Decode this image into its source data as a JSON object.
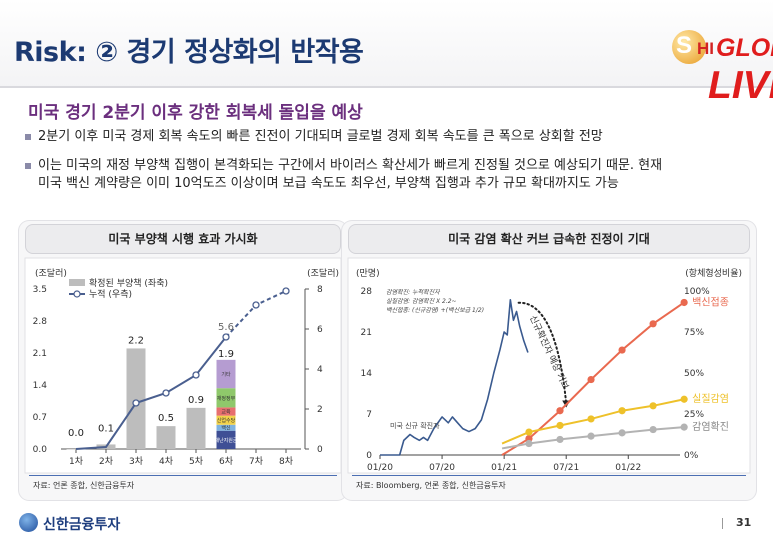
{
  "slide": {
    "title": "Risk: ② 경기 정상화의 반작용",
    "headline": "미국 경기 2분기 이후 강한 회복세 돌입을 예상",
    "bullets": [
      "2분기 이후 미국 경제 회복 속도의 빠른 진전이 기대되며 글로벌 경제 회복 속도를 큰 폭으로 상회할 전망",
      "이는 미국의 재정 부양책 집행이 본격화되는 구간에서 바이러스 확산세가 빠르게 진정될 것으로 예상되기 때문. 현재",
      "미국 백신 계약량은 이미 10억도즈 이상이며 보급 속도도 최우선, 부양책 집행과 추가 규모 확대까지도 가능"
    ],
    "page_number": "31",
    "brand": "신한금융투자",
    "logo": {
      "s": "S",
      "hi": "HI",
      "glob": "GLOB",
      "live": "LIVE"
    }
  },
  "chart_data": [
    {
      "type": "bar",
      "panel_title": "미국 부양책 시행 효과 가시화",
      "left_unit": "(조달러)",
      "right_unit": "(조달러)",
      "categories": [
        "1차",
        "2차",
        "3차",
        "4차",
        "5차",
        "6차",
        "7차",
        "8차"
      ],
      "left_ticks": [
        "3.5",
        "2.8",
        "2.1",
        "1.4",
        "0.7",
        "0.0"
      ],
      "left_tick_values": [
        3.5,
        2.8,
        2.1,
        1.4,
        0.7,
        0.0
      ],
      "right_ticks": [
        "8",
        "6",
        "4",
        "2",
        "0"
      ],
      "right_tick_values": [
        8,
        6,
        4,
        2,
        0
      ],
      "ylim_left": [
        0,
        3.5
      ],
      "ylim_right": [
        0,
        8
      ],
      "series": [
        {
          "name": "확정된 부양책 (좌축)",
          "axis": "left",
          "values": [
            0.0,
            0.1,
            2.2,
            0.5,
            0.9,
            1.9,
            null,
            null
          ],
          "labels": [
            "0.0",
            "0.1",
            "2.2",
            "0.5",
            "0.9",
            "1.9",
            "",
            ""
          ]
        },
        {
          "name": "누적 (우측)",
          "axis": "right",
          "values": [
            0.0,
            0.1,
            2.3,
            2.8,
            3.7,
            5.6,
            7.2,
            7.9
          ],
          "projected_from_index": 5,
          "labels": [
            "",
            "",
            "",
            "",
            "",
            "5.6",
            "",
            ""
          ]
        }
      ],
      "stack_6th": [
        {
          "label": "기타",
          "value": 0.62,
          "color": "#b59cd1"
        },
        {
          "label": "재정정부",
          "value": 0.42,
          "color": "#8fc86b"
        },
        {
          "label": "교육",
          "value": 0.18,
          "color": "#e76f6f"
        },
        {
          "label": "신업수당",
          "value": 0.2,
          "color": "#f1d24b"
        },
        {
          "label": "백신",
          "value": 0.13,
          "color": "#7fb3e0"
        },
        {
          "label": "재난지원금",
          "value": 0.4,
          "color": "#3f4f95"
        }
      ],
      "source": "자료: 언론 종합, 신한금융투자"
    },
    {
      "type": "line",
      "panel_title": "미국 감염 확산 커브 급속한 진정이 기대",
      "left_unit": "(만명)",
      "right_unit": "(항체형성비율)",
      "x_ticks": [
        "01/20",
        "07/20",
        "01/21",
        "07/21",
        "01/22"
      ],
      "left_ticks": [
        "28",
        "21",
        "14",
        "7",
        "0"
      ],
      "left_tick_values": [
        28,
        21,
        14,
        7,
        0
      ],
      "right_ticks": [
        "100%",
        "75%",
        "50%",
        "25%",
        "0%"
      ],
      "right_tick_values": [
        100,
        75,
        50,
        25,
        0
      ],
      "ylim_left": [
        0,
        28
      ],
      "ylim_right": [
        0,
        100
      ],
      "legend_lines": [
        "감염확진: 누적확진자",
        "실질감염: 감염확진 X 2.2~",
        "백신접종: (신규감염) +(백신보급 1/2)"
      ],
      "series": [
        {
          "name": "미국 신규 확진자",
          "axis": "left",
          "color": "#3a5a8f",
          "x": [
            0,
            0.9,
            1.9,
            2.3,
            2.9,
            3.3,
            3.8,
            4.2,
            4.6,
            5.2,
            6.0,
            6.6,
            7.0,
            7.5,
            8.0,
            8.6,
            9.2,
            9.8,
            10.4,
            11.0,
            11.6,
            12.0,
            12.3,
            12.6,
            12.9,
            13.2,
            13.5,
            13.9,
            14.3
          ],
          "values": [
            0,
            0,
            0,
            2.5,
            3.5,
            3.0,
            2.5,
            3.0,
            2.5,
            4.5,
            6.5,
            5.5,
            6.5,
            5.5,
            4.5,
            4.0,
            4.5,
            6.0,
            9.5,
            14.0,
            18.0,
            21.0,
            20.5,
            26.5,
            23.0,
            24.5,
            22.0,
            19.5,
            17.5
          ]
        },
        {
          "name": "백신접종",
          "axis": "right",
          "color": "#e9694f",
          "x": [
            11.8,
            14.4,
            17.4,
            20.4,
            23.4,
            26.4,
            29.4
          ],
          "values": [
            0,
            10,
            27,
            46,
            64,
            80,
            93
          ],
          "end_label": "백신접종"
        },
        {
          "name": "실질감염",
          "axis": "right",
          "color": "#eec12a",
          "x": [
            11.8,
            14.4,
            17.4,
            20.4,
            23.4,
            26.4,
            29.4
          ],
          "values": [
            7,
            14,
            18,
            22,
            27,
            30,
            34
          ],
          "end_label": "실질감염"
        },
        {
          "name": "감염확진",
          "axis": "right",
          "color": "#b3b3b3",
          "x": [
            11.8,
            14.4,
            17.4,
            20.4,
            23.4,
            26.4,
            29.4
          ],
          "values": [
            4,
            7,
            9.5,
            11.5,
            13.5,
            15.5,
            17
          ],
          "end_label": "감염확진"
        }
      ],
      "x_tick_positions": [
        0,
        6,
        12,
        18,
        24
      ],
      "x_range": [
        0,
        29
      ],
      "annotations": {
        "new_cases_label": "미국 신규 확진자",
        "curve_label": "신규확진자 예상 커브"
      },
      "source": "자료: Bloomberg, 언론 종합, 신한금융투자"
    }
  ]
}
